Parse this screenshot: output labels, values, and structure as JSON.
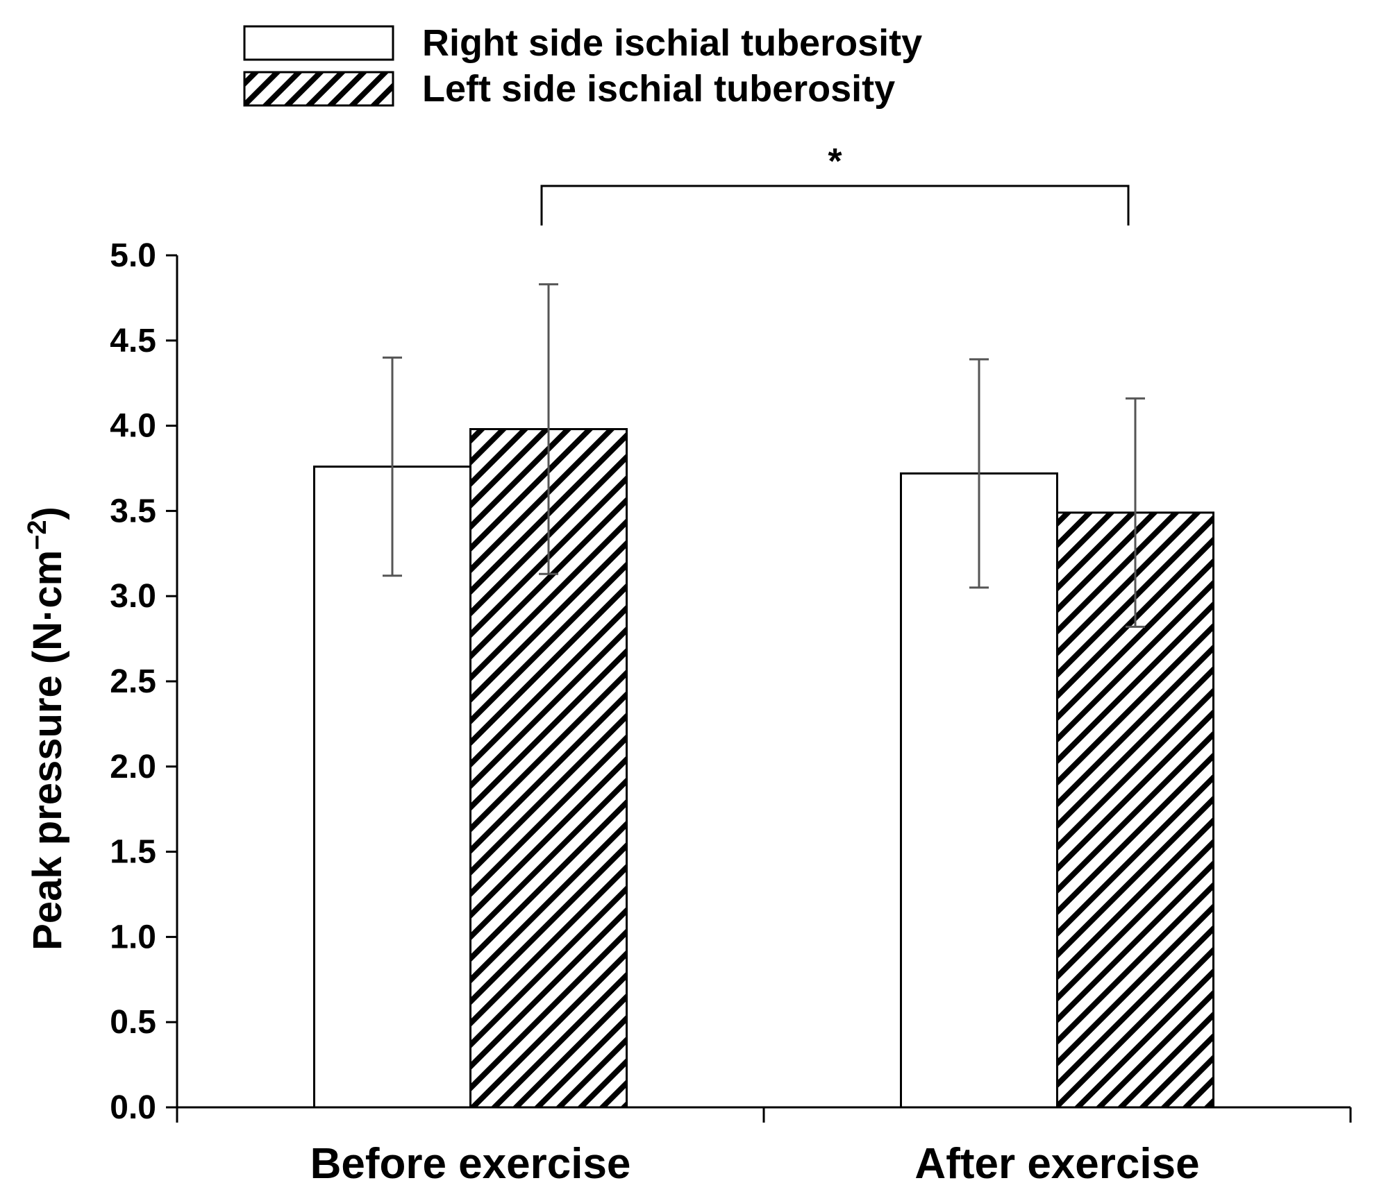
{
  "chart_data": {
    "type": "bar",
    "title": "",
    "xlabel": "",
    "ylabel": "Peak pressure (N·cm",
    "ylabel_sup": "−2",
    "ylabel_close": ")",
    "ylim": [
      0,
      5
    ],
    "yticks": [
      "0.0",
      "0.5",
      "1.0",
      "1.5",
      "2.0",
      "2.5",
      "3.0",
      "3.5",
      "4.0",
      "4.5",
      "5.0"
    ],
    "categories": [
      "Before exercise",
      "After exercise"
    ],
    "series": [
      {
        "name": "Right side ischial tuberosity",
        "pattern": "solid-white",
        "values": [
          3.76,
          3.72
        ],
        "errors": [
          0.64,
          0.67
        ]
      },
      {
        "name": "Left side ischial tuberosity",
        "pattern": "diagonal-hatch",
        "values": [
          3.98,
          3.49
        ],
        "errors": [
          0.85,
          0.67
        ]
      }
    ],
    "significance": {
      "label": "*",
      "between": [
        "Before exercise: Left side ischial tuberosity",
        "After exercise: Left side ischial tuberosity"
      ]
    },
    "legend_position": "top-left",
    "grid": false
  },
  "colors": {
    "axis": "#000000",
    "bar_fill": "#ffffff",
    "hatch": "#000000",
    "error_bar": "#555555"
  }
}
